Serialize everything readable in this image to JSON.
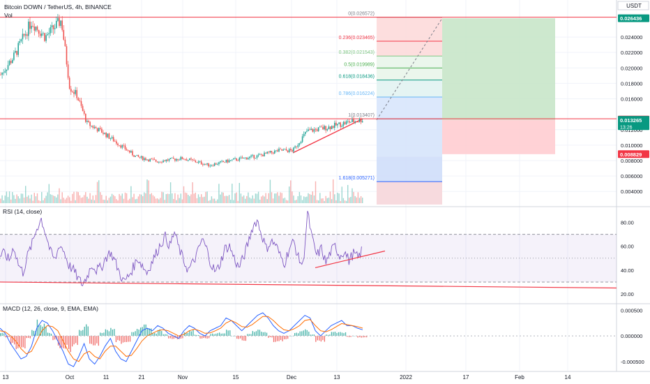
{
  "header": {
    "symbol_title": "Bitcoin DOWN / TetherUS, 4h, BINANCE",
    "volume_label": "Vol",
    "currency_label": "USDT"
  },
  "colors": {
    "up": "#26a69a",
    "down": "#ef5350",
    "rsi": "#7e57c2",
    "macd": "#2962ff",
    "signal": "#ff6d00",
    "trendline": "#f23645",
    "target_zone": "#c8e6c9",
    "stop_zone": "#ffcdd2",
    "fib_pink": "#fdd8d8",
    "fib_blue": "#d6e4fb",
    "fib_gray": "#e6e6e6"
  },
  "chart_data": [
    {
      "type": "candlestick",
      "title": "Bitcoin DOWN / TetherUS, 4h, BINANCE",
      "y_axis_ticks": [
        "0.024000",
        "0.022000",
        "0.020000",
        "0.018000",
        "0.016000",
        "0.012000",
        "0.010000",
        "0.008000",
        "0.006000",
        "0.004000"
      ],
      "x_axis_ticks": [
        "13",
        "Oct",
        "11",
        "21",
        "Nov",
        "15",
        "Dec",
        "13",
        "2022",
        "17",
        "Feb",
        "14"
      ],
      "ylim": [
        0.0023,
        0.0288
      ],
      "grid": true,
      "price_path": [
        {
          "x": "13",
          "close": 0.019
        },
        {
          "x": "17",
          "close": 0.0215
        },
        {
          "x": "21",
          "close": 0.026
        },
        {
          "x": "25",
          "close": 0.024
        },
        {
          "x": "28",
          "close": 0.0262
        },
        {
          "x": "Oct",
          "close": 0.0175
        },
        {
          "x": "5",
          "close": 0.0165
        },
        {
          "x": "8",
          "close": 0.0128
        },
        {
          "x": "11",
          "close": 0.0118
        },
        {
          "x": "15",
          "close": 0.0105
        },
        {
          "x": "21",
          "close": 0.0085
        },
        {
          "x": "25",
          "close": 0.0079
        },
        {
          "x": "Nov",
          "close": 0.0083
        },
        {
          "x": "5",
          "close": 0.0074
        },
        {
          "x": "10",
          "close": 0.008
        },
        {
          "x": "15",
          "close": 0.0086
        },
        {
          "x": "20",
          "close": 0.0093
        },
        {
          "x": "Dec",
          "close": 0.0093
        },
        {
          "x": "4",
          "close": 0.0118
        },
        {
          "x": "6",
          "close": 0.0123
        },
        {
          "x": "13",
          "close": 0.013
        },
        {
          "x": "17",
          "close": 0.0133
        }
      ],
      "horizontal_lines": [
        0.02657,
        0.01341
      ],
      "trendline": [
        [
          0.009,
          "Dec"
        ],
        [
          0.01341,
          "17"
        ]
      ],
      "fibonacci": [
        {
          "label": "0(0.026572)",
          "value": 0.026572,
          "color": "#787b86"
        },
        {
          "label": "0.236(0.023465)",
          "value": 0.023465,
          "color": "#f23645"
        },
        {
          "label": "0.382(0.021543)",
          "value": 0.021543,
          "color": "#81c784"
        },
        {
          "label": "0.5(0.019989)",
          "value": 0.019989,
          "color": "#4caf50"
        },
        {
          "label": "0.618(0.018436)",
          "value": 0.018436,
          "color": "#089981"
        },
        {
          "label": "0.786(0.016224)",
          "value": 0.016224,
          "color": "#64b5f6"
        },
        {
          "label": "1(0.013407)",
          "value": 0.013407,
          "color": "#787b86"
        },
        {
          "label": "1.618(0.005271)",
          "value": 0.005271,
          "color": "#2962ff"
        }
      ],
      "position": {
        "entry": 0.013265,
        "target": 0.026436,
        "stop": 0.008829
      },
      "price_labels": [
        {
          "text": "0.026436",
          "value": 0.026436,
          "bg": "#089981"
        },
        {
          "text": "0.013307",
          "value": 0.013307,
          "bg": "#f23645"
        },
        {
          "text": "0.013271",
          "value": 0.013271,
          "bg": "#434651"
        },
        {
          "text": "0.013265",
          "value": 0.013265,
          "bg": "#089981",
          "sub": "13:26"
        },
        {
          "text": "0.008829",
          "value": 0.008829,
          "bg": "#f23645"
        }
      ]
    },
    {
      "type": "line",
      "title": "RSI (14, close)",
      "y_axis_ticks": [
        "80.00",
        "60.00",
        "40.00",
        "20.00"
      ],
      "ylim": [
        13,
        92
      ],
      "bands": [
        30,
        50,
        70
      ],
      "trendlines": [
        [
          [
            42,
            "4"
          ],
          [
            56,
            "17"
          ]
        ],
        [
          [
            30,
            "13"
          ],
          [
            25,
            "14"
          ]
        ]
      ],
      "value_path": [
        52,
        54,
        48,
        60,
        45,
        38,
        52,
        62,
        75,
        83,
        70,
        55,
        48,
        62,
        55,
        44,
        40,
        33,
        28,
        35,
        45,
        40,
        42,
        50,
        55,
        48,
        38,
        30,
        35,
        42,
        50,
        44,
        38,
        46,
        54,
        62,
        68,
        60,
        72,
        58,
        48,
        40,
        46,
        54,
        66,
        58,
        45,
        38,
        46,
        58,
        60,
        50,
        42,
        50,
        62,
        76,
        82,
        70,
        58,
        64,
        62,
        52,
        46,
        58,
        64,
        50,
        44,
        88,
        66,
        52,
        58,
        46,
        55,
        60,
        52,
        56,
        48,
        54,
        50,
        58
      ]
    },
    {
      "type": "line",
      "title": "MACD (12, 26, close, 9, EMA, EMA)",
      "y_axis_ticks": [
        "0.000500",
        "0.000000",
        "-0.000500"
      ],
      "ylim": [
        -0.00068,
        0.0006
      ],
      "series": [
        {
          "name": "MACD",
          "values": [
            0.00015,
            5e-05,
            -0.00015,
            -0.0003,
            -0.00045,
            -0.0004,
            -0.0002,
            0.00015,
            0.0003,
            0.00025,
            0.0001,
            -0.0001,
            -0.0003,
            -0.00055,
            -0.0006,
            -0.0004,
            -0.00015,
            -0.00045,
            -0.00055,
            -0.0004,
            -0.0002,
            -5e-05,
            -0.0003,
            -0.00045,
            -0.0005,
            -0.0003,
            -0.0001,
            0.0001,
            0.00015,
            0.0001,
            0.0002,
            0.00015,
            5e-05,
            0.0,
            -5e-05,
            0.0001,
            0.0002,
            0.00015,
            5e-05,
            0.0,
            0.0001,
            0.00015,
            0.0002,
            0.00035,
            0.0003,
            0.0002,
            0.0001,
            0.0002,
            0.0003,
            0.0004,
            0.00045,
            0.00035,
            0.0002,
            0.0001,
            5e-05,
            0.0001,
            0.0002,
            0.0003,
            0.0004,
            0.00035,
            0.0001,
            0.0,
            0.0001,
            0.0002,
            0.00025,
            0.0003,
            0.0002,
            0.0002,
            0.00015,
            0.00012
          ]
        },
        {
          "name": "Signal",
          "values": [
            0.0001,
            8e-05,
            0.0,
            -0.0001,
            -0.00025,
            -0.00035,
            -0.0003,
            -0.0001,
            0.0001,
            0.0002,
            0.00018,
            0.0001,
            -0.0001,
            -0.0003,
            -0.00045,
            -0.0005,
            -0.00035,
            -0.0003,
            -0.0004,
            -0.00045,
            -0.0003,
            -0.0002,
            -0.0002,
            -0.0003,
            -0.0004,
            -0.00038,
            -0.00025,
            -0.0001,
            0.0,
            5e-05,
            0.0001,
            0.00012,
            0.0001,
            5e-05,
            0.0,
            3e-05,
            0.0001,
            0.00013,
            0.0001,
            5e-05,
            6e-05,
            0.0001,
            0.00015,
            0.00025,
            0.0003,
            0.00025,
            0.00018,
            0.00017,
            0.00022,
            0.0003,
            0.00038,
            0.00038,
            0.0003,
            0.0002,
            0.00012,
            0.0001,
            0.00014,
            0.0002,
            0.0003,
            0.00032,
            0.0002,
            0.0001,
            8e-05,
            0.00012,
            0.00018,
            0.00024,
            0.00022,
            0.0002,
            0.00018,
            0.00015
          ]
        }
      ]
    }
  ]
}
